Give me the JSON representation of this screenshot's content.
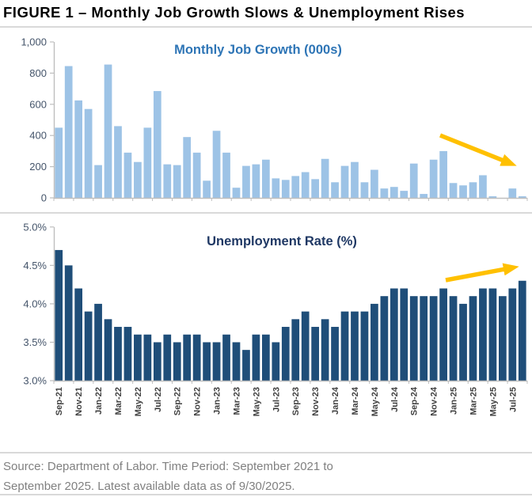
{
  "figure": {
    "title": "FIGURE 1 – Monthly Job Growth Slows & Unemployment Rises"
  },
  "footer": {
    "line1": "Source: Department of Labor. Time Period: September 2021 to",
    "line2": "September 2025. Latest available data as of 9/30/2025."
  },
  "chart_data": [
    {
      "type": "bar",
      "title": "Monthly Job Growth (000s)",
      "title_color": "#2E75B6",
      "bar_color": "#9DC3E6",
      "ylabel": "",
      "xlabel": "",
      "ylim": [
        0,
        1000
      ],
      "ytick_labels": [
        "1,000",
        "800",
        "600",
        "400",
        "200",
        "0"
      ],
      "grid": false,
      "legend": "none",
      "annotation": "downward-trend-arrow",
      "arrow_color": "#FFC000",
      "months": [
        "Sep-21",
        "Oct-21",
        "Nov-21",
        "Dec-21",
        "Jan-22",
        "Feb-22",
        "Mar-22",
        "Apr-22",
        "May-22",
        "Jun-22",
        "Jul-22",
        "Aug-22",
        "Sep-22",
        "Oct-22",
        "Nov-22",
        "Dec-22",
        "Jan-23",
        "Feb-23",
        "Mar-23",
        "Apr-23",
        "May-23",
        "Jun-23",
        "Jul-23",
        "Aug-23",
        "Sep-23",
        "Oct-23",
        "Nov-23",
        "Dec-23",
        "Jan-24",
        "Feb-24",
        "Mar-24",
        "Apr-24",
        "May-24",
        "Jun-24",
        "Jul-24",
        "Aug-24",
        "Sep-24",
        "Oct-24",
        "Nov-24",
        "Dec-24",
        "Jan-25",
        "Feb-25",
        "Mar-25",
        "Apr-25",
        "May-25",
        "Jun-25",
        "Jul-25",
        "Aug-25"
      ],
      "values": [
        450,
        845,
        625,
        570,
        210,
        855,
        460,
        290,
        230,
        450,
        685,
        215,
        210,
        390,
        290,
        110,
        430,
        290,
        65,
        205,
        215,
        245,
        125,
        115,
        140,
        165,
        120,
        250,
        100,
        205,
        230,
        100,
        180,
        60,
        70,
        45,
        220,
        25,
        245,
        300,
        95,
        80,
        100,
        145,
        10,
        0,
        60,
        10
      ]
    },
    {
      "type": "bar",
      "title": "Unemployment Rate (%)",
      "title_color": "#1F3864",
      "bar_color": "#1F4E79",
      "ylabel": "",
      "xlabel": "",
      "ylim": [
        3.0,
        5.0
      ],
      "ytick_labels": [
        "5.0%",
        "4.5%",
        "4.0%",
        "3.5%",
        "3.0%"
      ],
      "grid": false,
      "legend": "none",
      "annotation": "upward-trend-arrow",
      "arrow_color": "#FFC000",
      "months": [
        "Sep-21",
        "Oct-21",
        "Nov-21",
        "Dec-21",
        "Jan-22",
        "Feb-22",
        "Mar-22",
        "Apr-22",
        "May-22",
        "Jun-22",
        "Jul-22",
        "Aug-22",
        "Sep-22",
        "Oct-22",
        "Nov-22",
        "Dec-22",
        "Jan-23",
        "Feb-23",
        "Mar-23",
        "Apr-23",
        "May-23",
        "Jun-23",
        "Jul-23",
        "Aug-23",
        "Sep-23",
        "Oct-23",
        "Nov-23",
        "Dec-23",
        "Jan-24",
        "Feb-24",
        "Mar-24",
        "Apr-24",
        "May-24",
        "Jun-24",
        "Jul-24",
        "Aug-24",
        "Sep-24",
        "Oct-24",
        "Nov-24",
        "Dec-24",
        "Jan-25",
        "Feb-25",
        "Mar-25",
        "Apr-25",
        "May-25",
        "Jun-25",
        "Jul-25",
        "Aug-25"
      ],
      "values": [
        4.7,
        4.5,
        4.2,
        3.9,
        4.0,
        3.8,
        3.7,
        3.7,
        3.6,
        3.6,
        3.5,
        3.6,
        3.5,
        3.6,
        3.6,
        3.5,
        3.5,
        3.6,
        3.5,
        3.4,
        3.6,
        3.6,
        3.5,
        3.7,
        3.8,
        3.9,
        3.7,
        3.8,
        3.7,
        3.9,
        3.9,
        3.9,
        4.0,
        4.1,
        4.2,
        4.2,
        4.1,
        4.1,
        4.1,
        4.2,
        4.1,
        4.0,
        4.1,
        4.2,
        4.2,
        4.1,
        4.2,
        4.3
      ]
    }
  ]
}
